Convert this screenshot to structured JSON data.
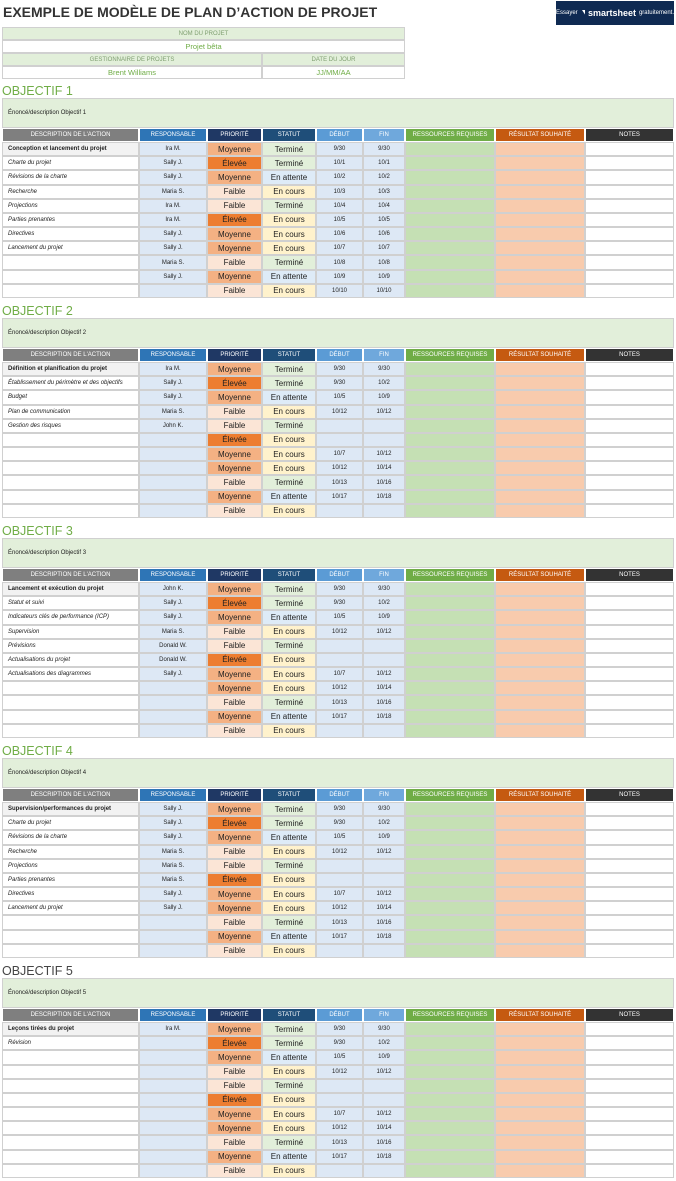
{
  "header": {
    "title": "EXEMPLE DE MODÈLE DE PLAN D’ACTION DE PROJET",
    "banner": {
      "prefix": "Essayer",
      "brand": "smartsheet",
      "suffix": "gratuitement."
    }
  },
  "project": {
    "name_label": "NOM DU PROJET",
    "name": "Projet bêta",
    "manager_label": "GESTIONNAIRE DE PROJETS",
    "manager": "Brent Williams",
    "date_label": "DATE DU JOUR",
    "date": "JJ/MM/AA"
  },
  "columns": [
    "DESCRIPTION DE L'ACTION",
    "RESPONSABLE",
    "PRIORITÉ",
    "STATUT",
    "DÉBUT",
    "FIN",
    "RESSOURCES REQUISES",
    "RÉSULTAT SOUHAITÉ",
    "NOTES"
  ],
  "cell_colors": {
    "priority": {
      "Moyenne": "#f4b183",
      "Élevée": "#ed7d31",
      "Faible": "#fbe5d6"
    },
    "status": {
      "Terminé": "#e2efda",
      "En cours": "#fff2cc",
      "En attente": "#deebf7"
    }
  },
  "objectives": [
    {
      "title": "OBJECTIF 1",
      "description": "Énoncé/description Objectif 1",
      "rows": [
        {
          "action": "Conception et lancement du projet",
          "owner": "Ira M.",
          "priority": "Moyenne",
          "status": "Terminé",
          "start": "9/30",
          "end": "9/30"
        },
        {
          "action": "Charte du projet",
          "owner": "Sally J.",
          "priority": "Élevée",
          "status": "Terminé",
          "start": "10/1",
          "end": "10/1"
        },
        {
          "action": "Révisions de la charte",
          "owner": "Sally J.",
          "priority": "Moyenne",
          "status": "En attente",
          "start": "10/2",
          "end": "10/2"
        },
        {
          "action": "Recherche",
          "owner": "Maria S.",
          "priority": "Faible",
          "status": "En cours",
          "start": "10/3",
          "end": "10/3"
        },
        {
          "action": "Projections",
          "owner": "Ira M.",
          "priority": "Faible",
          "status": "Terminé",
          "start": "10/4",
          "end": "10/4"
        },
        {
          "action": "Parties prenantes",
          "owner": "Ira M.",
          "priority": "Élevée",
          "status": "En cours",
          "start": "10/5",
          "end": "10/5"
        },
        {
          "action": "Directives",
          "owner": "Sally J.",
          "priority": "Moyenne",
          "status": "En cours",
          "start": "10/6",
          "end": "10/6"
        },
        {
          "action": "Lancement du projet",
          "owner": "Sally J.",
          "priority": "Moyenne",
          "status": "En cours",
          "start": "10/7",
          "end": "10/7"
        },
        {
          "owner": "Maria S.",
          "priority": "Faible",
          "status": "Terminé",
          "start": "10/8",
          "end": "10/8"
        },
        {
          "owner": "Sally J.",
          "priority": "Moyenne",
          "status": "En attente",
          "start": "10/9",
          "end": "10/9"
        },
        {
          "priority": "Faible",
          "status": "En cours",
          "start": "10/10",
          "end": "10/10"
        }
      ]
    },
    {
      "title": "OBJECTIF 2",
      "description": "Énoncé/description Objectif 2",
      "rows": [
        {
          "action": "Définition et planification du projet",
          "owner": "Ira M.",
          "priority": "Moyenne",
          "status": "Terminé",
          "start": "9/30",
          "end": "9/30"
        },
        {
          "action": "Établissement du périmètre et des objectifs",
          "owner": "Sally J.",
          "priority": "Élevée",
          "status": "Terminé",
          "start": "9/30",
          "end": "10/2"
        },
        {
          "action": "Budget",
          "owner": "Sally J.",
          "priority": "Moyenne",
          "status": "En attente",
          "start": "10/5",
          "end": "10/9"
        },
        {
          "action": "Plan de communication",
          "owner": "Maria S.",
          "priority": "Faible",
          "status": "En cours",
          "start": "10/12",
          "end": "10/12"
        },
        {
          "action": "Gestion des risques",
          "owner": "John K.",
          "priority": "Faible",
          "status": "Terminé"
        },
        {
          "priority": "Élevée",
          "status": "En cours"
        },
        {
          "priority": "Moyenne",
          "status": "En cours",
          "start": "10/7",
          "end": "10/12"
        },
        {
          "priority": "Moyenne",
          "status": "En cours",
          "start": "10/12",
          "end": "10/14"
        },
        {
          "priority": "Faible",
          "status": "Terminé",
          "start": "10/13",
          "end": "10/16"
        },
        {
          "priority": "Moyenne",
          "status": "En attente",
          "start": "10/17",
          "end": "10/18"
        },
        {
          "priority": "Faible",
          "status": "En cours"
        }
      ]
    },
    {
      "title": "OBJECTIF 3",
      "description": "Énoncé/description Objectif 3",
      "rows": [
        {
          "action": "Lancement et exécution du projet",
          "owner": "John K.",
          "priority": "Moyenne",
          "status": "Terminé",
          "start": "9/30",
          "end": "9/30"
        },
        {
          "action": "Statut et suivi",
          "owner": "Sally J.",
          "priority": "Élevée",
          "status": "Terminé",
          "start": "9/30",
          "end": "10/2"
        },
        {
          "action": "Indicateurs clés de performance (ICP)",
          "owner": "Sally J.",
          "priority": "Moyenne",
          "status": "En attente",
          "start": "10/5",
          "end": "10/9"
        },
        {
          "action": "Supervision",
          "owner": "Maria S.",
          "priority": "Faible",
          "status": "En cours",
          "start": "10/12",
          "end": "10/12"
        },
        {
          "action": "Prévisions",
          "owner": "Donald W.",
          "priority": "Faible",
          "status": "Terminé"
        },
        {
          "action": "Actualisations du projet",
          "owner": "Donald W.",
          "priority": "Élevée",
          "status": "En cours"
        },
        {
          "action": "Actualisations des diagrammes",
          "owner": "Sally J.",
          "priority": "Moyenne",
          "status": "En cours",
          "start": "10/7",
          "end": "10/12"
        },
        {
          "priority": "Moyenne",
          "status": "En cours",
          "start": "10/12",
          "end": "10/14"
        },
        {
          "priority": "Faible",
          "status": "Terminé",
          "start": "10/13",
          "end": "10/16"
        },
        {
          "priority": "Moyenne",
          "status": "En attente",
          "start": "10/17",
          "end": "10/18"
        },
        {
          "priority": "Faible",
          "status": "En cours"
        }
      ]
    },
    {
      "title": "OBJECTIF 4",
      "description": "Énoncé/description Objectif 4",
      "rows": [
        {
          "action": "Supervision/performances du projet",
          "owner": "Sally J.",
          "priority": "Moyenne",
          "status": "Terminé",
          "start": "9/30",
          "end": "9/30"
        },
        {
          "action": "Charte du projet",
          "owner": "Sally J.",
          "priority": "Élevée",
          "status": "Terminé",
          "start": "9/30",
          "end": "10/2"
        },
        {
          "action": "Révisions de la charte",
          "owner": "Sally J.",
          "priority": "Moyenne",
          "status": "En attente",
          "start": "10/5",
          "end": "10/9"
        },
        {
          "action": "Recherche",
          "owner": "Maria S.",
          "priority": "Faible",
          "status": "En cours",
          "start": "10/12",
          "end": "10/12"
        },
        {
          "action": "Projections",
          "owner": "Maria S.",
          "priority": "Faible",
          "status": "Terminé"
        },
        {
          "action": "Parties prenantes",
          "owner": "Maria S.",
          "priority": "Élevée",
          "status": "En cours"
        },
        {
          "action": "Directives",
          "owner": "Sally J.",
          "priority": "Moyenne",
          "status": "En cours",
          "start": "10/7",
          "end": "10/12"
        },
        {
          "action": "Lancement du projet",
          "owner": "Sally J.",
          "priority": "Moyenne",
          "status": "En cours",
          "start": "10/12",
          "end": "10/14"
        },
        {
          "priority": "Faible",
          "status": "Terminé",
          "start": "10/13",
          "end": "10/16"
        },
        {
          "priority": "Moyenne",
          "status": "En attente",
          "start": "10/17",
          "end": "10/18"
        },
        {
          "priority": "Faible",
          "status": "En cours"
        }
      ]
    },
    {
      "title": "OBJECTIF 5",
      "description": "Énoncé/description Objectif 5",
      "rows": [
        {
          "action": "Leçons tirées du projet",
          "owner": "Ira M.",
          "priority": "Moyenne",
          "status": "Terminé",
          "start": "9/30",
          "end": "9/30"
        },
        {
          "action": "Révision",
          "priority": "Élevée",
          "status": "Terminé",
          "start": "9/30",
          "end": "10/2"
        },
        {
          "priority": "Moyenne",
          "status": "En attente",
          "start": "10/5",
          "end": "10/9"
        },
        {
          "priority": "Faible",
          "status": "En cours",
          "start": "10/12",
          "end": "10/12"
        },
        {
          "priority": "Faible",
          "status": "Terminé"
        },
        {
          "priority": "Élevée",
          "status": "En cours"
        },
        {
          "priority": "Moyenne",
          "status": "En cours",
          "start": "10/7",
          "end": "10/12"
        },
        {
          "priority": "Moyenne",
          "status": "En cours",
          "start": "10/12",
          "end": "10/14"
        },
        {
          "priority": "Faible",
          "status": "Terminé",
          "start": "10/13",
          "end": "10/16"
        },
        {
          "priority": "Moyenne",
          "status": "En attente",
          "start": "10/17",
          "end": "10/18"
        },
        {
          "priority": "Faible",
          "status": "En cours"
        }
      ]
    }
  ]
}
